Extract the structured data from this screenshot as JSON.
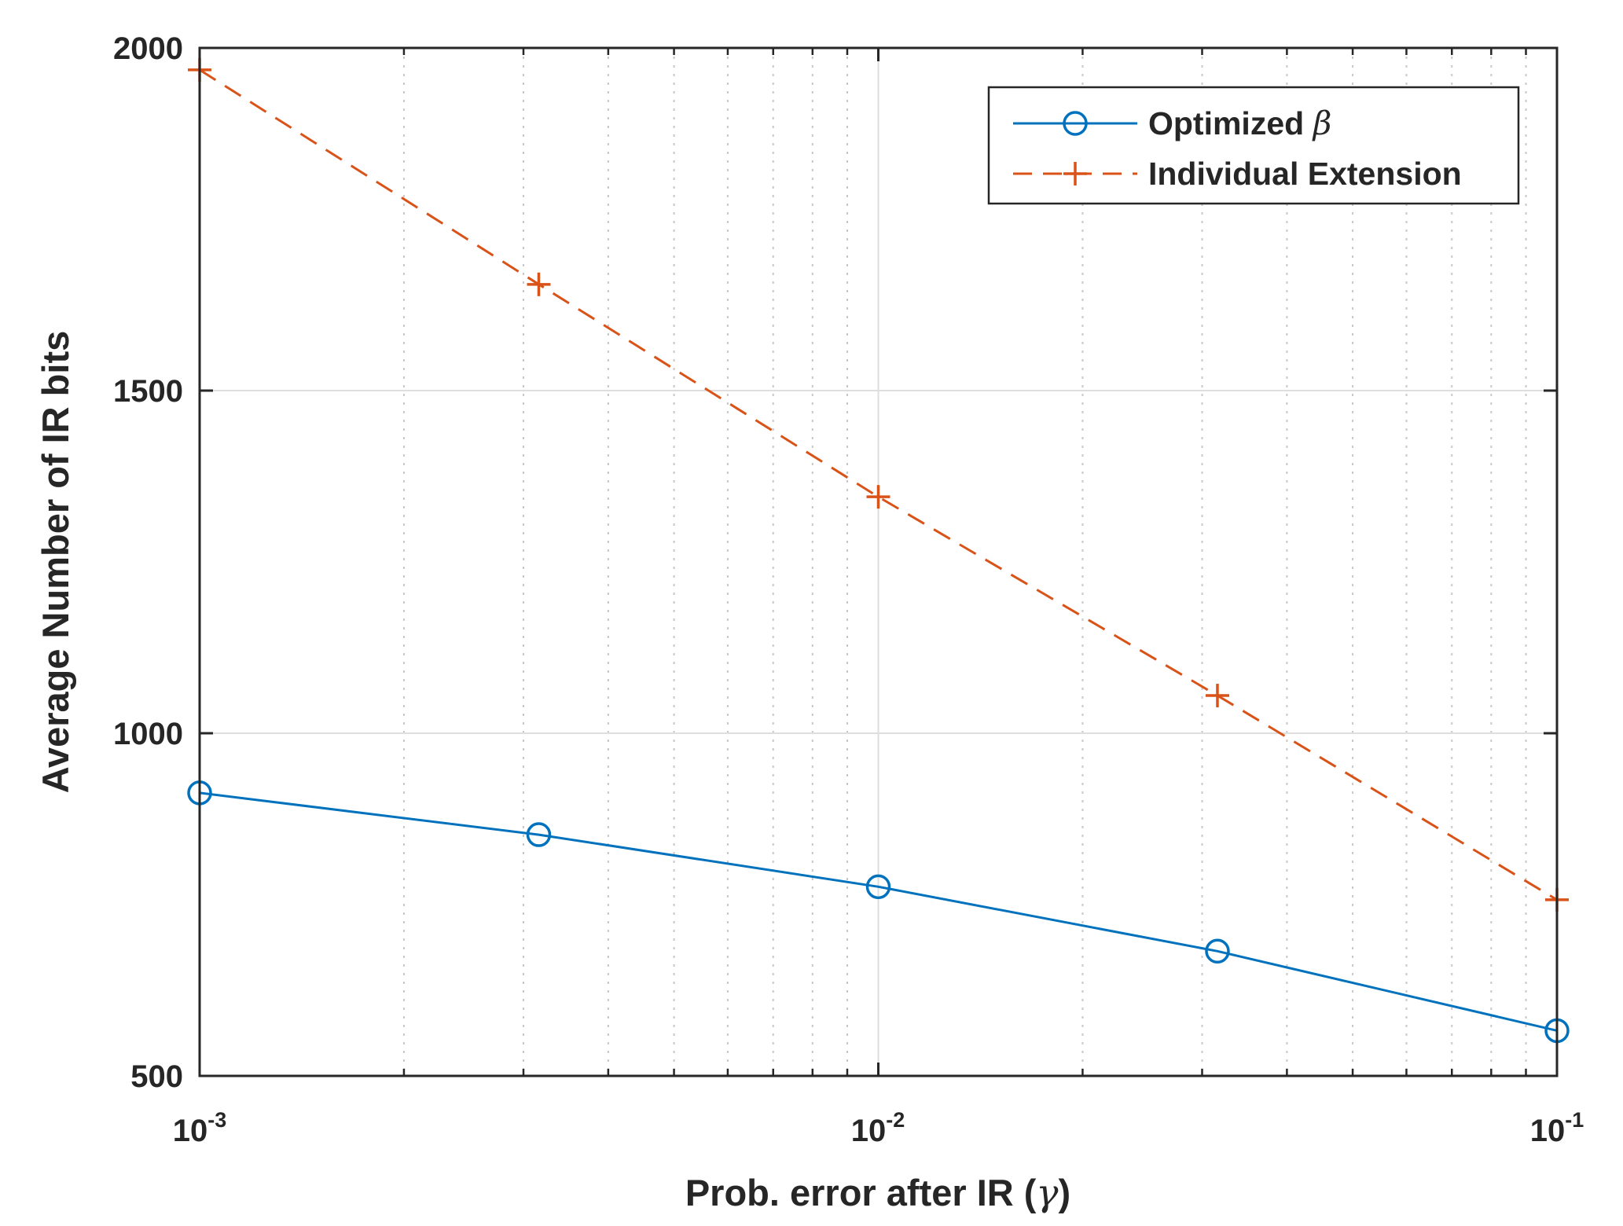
{
  "chart_data": {
    "type": "line",
    "x_scale": "log",
    "xlabel": {
      "main": "Prob. error after IR (",
      "symbol": "γ",
      "tail": ")"
    },
    "ylabel": "Average Number of IR bits",
    "xlim": [
      0.001,
      0.1
    ],
    "ylim": [
      500,
      2000
    ],
    "x_ticks": [
      {
        "value": 0.001,
        "base": "10",
        "exp": "-3"
      },
      {
        "value": 0.01,
        "base": "10",
        "exp": "-2"
      },
      {
        "value": 0.1,
        "base": "10",
        "exp": "-1"
      }
    ],
    "y_ticks": [
      500,
      1000,
      1500,
      2000
    ],
    "grid": true,
    "minor_grid": true,
    "legend_position": "top-right",
    "series": [
      {
        "name": "Optimized",
        "symbol": "β",
        "color": "#0072BD",
        "line_style": "solid",
        "marker": "circle",
        "x": [
          0.001,
          0.00316,
          0.01,
          0.0316,
          0.1
        ],
        "values": [
          913,
          852,
          776,
          682,
          566
        ]
      },
      {
        "name": "Individual Extension",
        "symbol": "",
        "color": "#D95319",
        "line_style": "dashed",
        "marker": "plus",
        "x": [
          0.001,
          0.00316,
          0.01,
          0.0316,
          0.1
        ],
        "values": [
          1968,
          1655,
          1345,
          1055,
          757
        ]
      }
    ]
  }
}
